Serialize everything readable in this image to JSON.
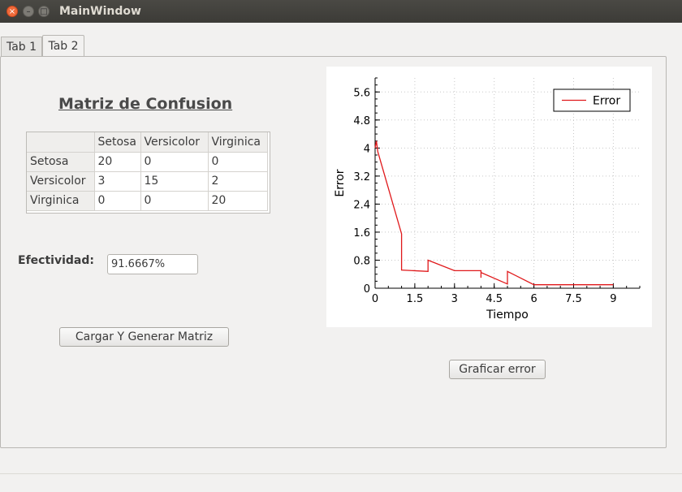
{
  "window": {
    "title": "MainWindow"
  },
  "tabs": [
    {
      "label": "Tab 1"
    },
    {
      "label": "Tab 2"
    }
  ],
  "main": {
    "heading": "Matriz de Confusion",
    "matrix": {
      "columns": [
        "",
        "Setosa",
        "Versicolor",
        "Virginica"
      ],
      "rows": [
        {
          "label": "Setosa",
          "cells": [
            "20",
            "0",
            "0"
          ]
        },
        {
          "label": "Versicolor",
          "cells": [
            "3",
            "15",
            "2"
          ]
        },
        {
          "label": "Virginica",
          "cells": [
            "0",
            "0",
            "20"
          ]
        }
      ]
    },
    "effectiveness_label": "Efectividad:",
    "effectiveness_value": "91.6667%",
    "load_button": "Cargar Y Generar Matriz",
    "graph_button": "Graficar error"
  },
  "chart_data": {
    "type": "line",
    "title": "",
    "xlabel": "Tiempo",
    "ylabel": "Error",
    "xlim": [
      0,
      10
    ],
    "ylim": [
      0,
      6
    ],
    "xticks": [
      "0",
      "1.5",
      "3",
      "4.5",
      "6",
      "7.5",
      "9"
    ],
    "yticks": [
      "0",
      "0.8",
      "1.6",
      "2.4",
      "3.2",
      "4",
      "4.8",
      "5.6"
    ],
    "grid": true,
    "legend_position": "top-right",
    "series": [
      {
        "name": "Error",
        "color": "#e0191b",
        "x": [
          0,
          0.05,
          0.1,
          1.0,
          1.0,
          1.0,
          2.0,
          2.0,
          2.0,
          3.0,
          4.0,
          4.0,
          4.0,
          5.0,
          5.0,
          6.0,
          9.0
        ],
        "y": [
          4.0,
          4.2,
          3.9,
          1.55,
          0.52,
          0.52,
          0.48,
          0.8,
          0.8,
          0.5,
          0.5,
          0.3,
          0.45,
          0.12,
          0.48,
          0.1,
          0.1
        ]
      }
    ]
  }
}
